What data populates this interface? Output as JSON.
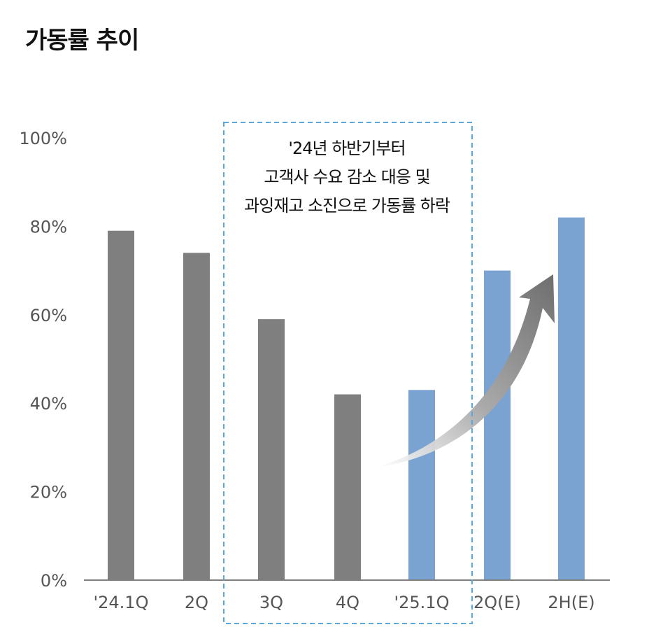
{
  "chart_data": {
    "type": "bar",
    "title": "가동률 추이",
    "categories": [
      "'24.1Q",
      "2Q",
      "3Q",
      "4Q",
      "'25.1Q",
      "2Q(E)",
      "2H(E)"
    ],
    "values": [
      79,
      74,
      59,
      42,
      43,
      70,
      82
    ],
    "value_unit": "%",
    "ylim": [
      0,
      100
    ],
    "yticks": [
      "0%",
      "20%",
      "40%",
      "60%",
      "80%",
      "100%"
    ],
    "ytick_values": [
      0,
      20,
      40,
      60,
      80,
      100
    ],
    "bar_colors": [
      "#7f7f7f",
      "#7f7f7f",
      "#7f7f7f",
      "#7f7f7f",
      "#7aa3d2",
      "#7aa3d2",
      "#7aa3d2"
    ],
    "grid": false,
    "legend": "none",
    "annotation": {
      "lines": [
        "'24년 하반기부터",
        "고객사 수요 감소 대응 및",
        "과잉재고 소진으로 가동률 하락"
      ],
      "box_style": "dashed",
      "box_color": "#5aa8dc",
      "spans_categories": [
        "3Q",
        "'25.1Q"
      ]
    },
    "trend_arrow": {
      "direction": "up",
      "from_category": "'25.1Q",
      "to_category": "2H(E)",
      "color": "#8a8a8a"
    }
  }
}
